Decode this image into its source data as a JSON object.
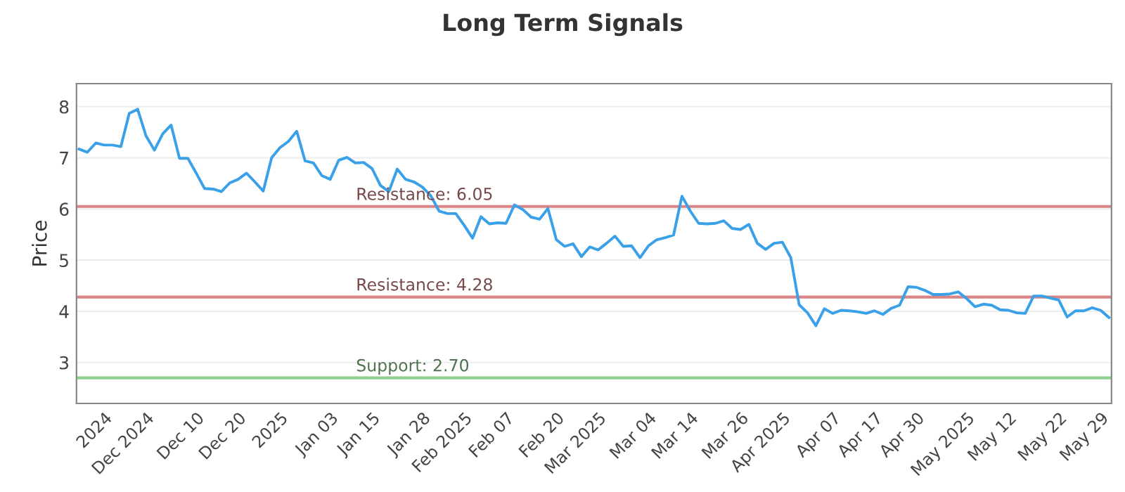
{
  "chart_data": {
    "type": "line",
    "title": "Long Term Signals",
    "ylabel": "Price",
    "categories": [
      null,
      null,
      null,
      "2024",
      null,
      null,
      null,
      null,
      "Dec 2024",
      null,
      null,
      null,
      null,
      null,
      "Dec 10",
      null,
      null,
      null,
      null,
      "Dec 20",
      null,
      null,
      null,
      null,
      "2025",
      null,
      null,
      null,
      null,
      null,
      "Jan 03",
      null,
      null,
      null,
      null,
      "Jan 15",
      null,
      null,
      null,
      null,
      null,
      "Jan 28",
      null,
      null,
      null,
      null,
      "Feb 2025",
      null,
      null,
      null,
      null,
      "Feb 07",
      null,
      null,
      null,
      null,
      null,
      "Feb 20",
      null,
      null,
      null,
      null,
      "Mar 2025",
      null,
      null,
      null,
      null,
      null,
      "Mar 04",
      null,
      null,
      null,
      null,
      "Mar 14",
      null,
      null,
      null,
      null,
      null,
      "Mar 26",
      null,
      null,
      null,
      null,
      "Apr 2025",
      null,
      null,
      null,
      null,
      null,
      "Apr 07",
      null,
      null,
      null,
      null,
      "Apr 17",
      null,
      null,
      null,
      null,
      "Apr 30",
      null,
      null,
      null,
      null,
      null,
      "May 2025",
      null,
      null,
      null,
      null,
      "May 12",
      null,
      null,
      null,
      null,
      null,
      "May 22",
      null,
      null,
      null,
      null,
      "May 29",
      null
    ],
    "series": [
      {
        "color": "#3aa0e8",
        "values": [
          7.17,
          7.11,
          7.29,
          7.25,
          7.25,
          7.22,
          7.87,
          7.95,
          7.43,
          7.15,
          7.47,
          7.64,
          6.99,
          6.99,
          6.7,
          6.4,
          6.39,
          6.34,
          6.51,
          6.58,
          6.7,
          6.53,
          6.35,
          7.0,
          7.2,
          7.32,
          7.52,
          6.94,
          6.9,
          6.65,
          6.58,
          6.95,
          7.01,
          6.9,
          6.91,
          6.79,
          6.46,
          6.34,
          6.78,
          6.58,
          6.53,
          6.43,
          6.26,
          5.96,
          5.91,
          5.91,
          5.68,
          5.43,
          5.85,
          5.71,
          5.73,
          5.72,
          6.08,
          5.99,
          5.84,
          5.8,
          6.01,
          5.4,
          5.27,
          5.32,
          5.07,
          5.26,
          5.2,
          5.33,
          5.47,
          5.27,
          5.28,
          5.05,
          5.28,
          5.4,
          5.44,
          5.49,
          6.25,
          5.96,
          5.72,
          5.71,
          5.72,
          5.77,
          5.62,
          5.6,
          5.7,
          5.33,
          5.21,
          5.33,
          5.35,
          5.05,
          4.13,
          3.97,
          3.72,
          4.05,
          3.96,
          4.02,
          4.01,
          3.99,
          3.96,
          4.01,
          3.94,
          4.06,
          4.12,
          4.48,
          4.47,
          4.41,
          4.33,
          4.33,
          4.34,
          4.38,
          4.25,
          4.09,
          4.14,
          4.12,
          4.03,
          4.02,
          3.97,
          3.96,
          4.3,
          4.3,
          4.26,
          4.22,
          3.89,
          4.01,
          4.01,
          4.07,
          4.02,
          3.88
        ]
      }
    ],
    "ylim": [
      2.2,
      8.45
    ],
    "yticks": [
      3,
      4,
      5,
      6,
      7,
      8
    ],
    "grid": "y",
    "ref_lines": [
      {
        "axis": "y",
        "value": 6.05,
        "label": "Resistance: 6.05",
        "color": "#d98585"
      },
      {
        "axis": "y",
        "value": 4.28,
        "label": "Resistance: 4.28",
        "color": "#d98585"
      },
      {
        "axis": "y",
        "value": 2.7,
        "label": "Support: 2.70",
        "color": "#8fd08f"
      }
    ]
  }
}
